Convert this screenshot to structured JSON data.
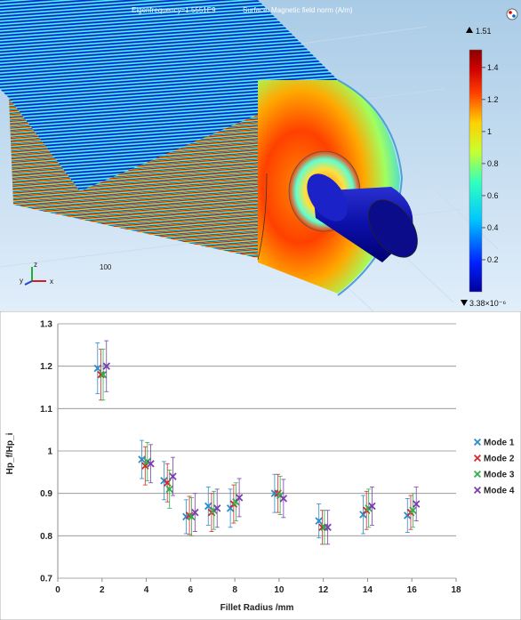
{
  "simulation": {
    "header_eigen": "Eigenfrequency=1.5551E9",
    "header_surface": "Surface: Magnetic field norm (A/m)",
    "max_label": "1.51",
    "min_label": "3.38×10⁻⁶",
    "colorbar_ticks": [
      "1.4",
      "1.2",
      "1",
      "0.8",
      "0.6",
      "0.4",
      "0.2"
    ],
    "colorbar_tick_values": [
      1.4,
      1.2,
      1.0,
      0.8,
      0.6,
      0.4,
      0.2
    ],
    "colorbar_range": [
      0,
      1.51
    ],
    "scale_label": "100",
    "axis_triad": {
      "y": "y",
      "z": "z",
      "x": "x"
    },
    "colormap_name": "rainbow",
    "colors": {
      "background_top": "#a9cbe6",
      "background_bottom": "#dfeefa",
      "min": "#00009a",
      "max": "#8a0000"
    }
  },
  "chart_data": {
    "type": "scatter",
    "xlabel": "Fillet Radius /mm",
    "ylabel": "Hp_f/Hp_i",
    "xlim": [
      0,
      18
    ],
    "ylim": [
      0.7,
      1.3
    ],
    "x_ticks": [
      "0",
      "2",
      "4",
      "6",
      "8",
      "10",
      "12",
      "14",
      "16",
      "18"
    ],
    "y_ticks": [
      "0.7",
      "0.8",
      "0.9",
      "1",
      "1.1",
      "1.2",
      "1.3"
    ],
    "grid": "horizontal",
    "legend_position": "right",
    "marker": "x",
    "series": [
      {
        "name": "Mode 1",
        "color": "#2e8bc9",
        "x": [
          1.8,
          3.8,
          4.8,
          5.8,
          6.8,
          7.8,
          9.8,
          11.8,
          13.8,
          15.8
        ],
        "y": [
          1.195,
          0.98,
          0.93,
          0.845,
          0.87,
          0.865,
          0.9,
          0.835,
          0.85,
          0.848
        ],
        "err": [
          0.06,
          0.045,
          0.045,
          0.04,
          0.045,
          0.045,
          0.045,
          0.04,
          0.045,
          0.04
        ]
      },
      {
        "name": "Mode 2",
        "color": "#d42a2a",
        "x": [
          1.95,
          3.95,
          4.95,
          5.95,
          6.95,
          7.95,
          9.95,
          11.95,
          13.95,
          15.95
        ],
        "y": [
          1.18,
          0.965,
          0.925,
          0.848,
          0.855,
          0.875,
          0.9,
          0.82,
          0.86,
          0.855
        ],
        "err": [
          0.06,
          0.045,
          0.045,
          0.045,
          0.045,
          0.045,
          0.045,
          0.04,
          0.045,
          0.04
        ]
      },
      {
        "name": "Mode 3",
        "color": "#2eb04a",
        "x": [
          2.05,
          4.05,
          5.05,
          6.05,
          7.05,
          8.05,
          10.05,
          12.05,
          14.05,
          16.05
        ],
        "y": [
          1.18,
          0.975,
          0.91,
          0.845,
          0.86,
          0.88,
          0.895,
          0.82,
          0.865,
          0.86
        ],
        "err": [
          0.06,
          0.045,
          0.045,
          0.045,
          0.045,
          0.045,
          0.045,
          0.04,
          0.045,
          0.04
        ]
      },
      {
        "name": "Mode 4",
        "color": "#7b3fb0",
        "x": [
          2.2,
          4.2,
          5.2,
          6.2,
          7.2,
          8.2,
          10.2,
          12.2,
          14.2,
          16.2
        ],
        "y": [
          1.2,
          0.97,
          0.94,
          0.855,
          0.865,
          0.89,
          0.888,
          0.82,
          0.87,
          0.875
        ],
        "err": [
          0.06,
          0.045,
          0.045,
          0.045,
          0.045,
          0.045,
          0.045,
          0.04,
          0.045,
          0.04
        ]
      }
    ]
  }
}
